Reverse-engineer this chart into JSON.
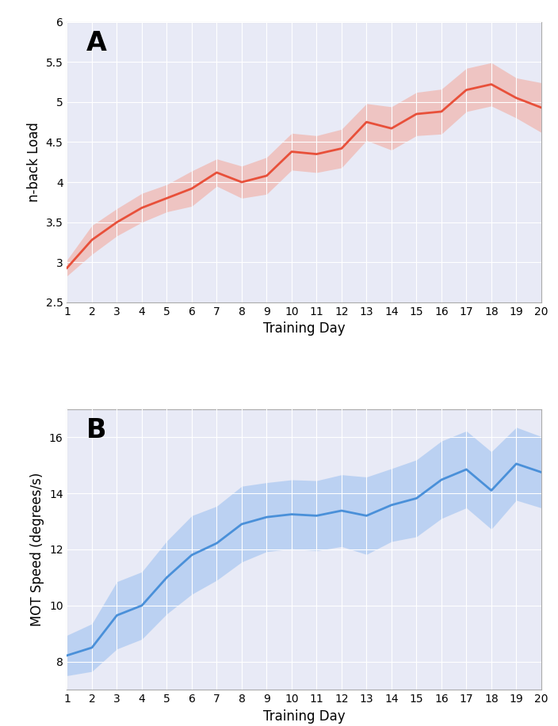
{
  "days": [
    1,
    2,
    3,
    4,
    5,
    6,
    7,
    8,
    9,
    10,
    11,
    12,
    13,
    14,
    15,
    16,
    17,
    18,
    19,
    20
  ],
  "panel_A": {
    "label": "A",
    "ylabel": "n-back Load",
    "xlabel": "Training Day",
    "ylim": [
      2.5,
      6.0
    ],
    "yticks": [
      2.5,
      3.0,
      3.5,
      4.0,
      4.5,
      5.0,
      5.5,
      6.0
    ],
    "mean": [
      2.93,
      3.28,
      3.5,
      3.68,
      3.8,
      3.92,
      4.12,
      4.0,
      4.08,
      4.38,
      4.35,
      4.42,
      4.75,
      4.67,
      4.85,
      4.88,
      5.15,
      5.22,
      5.05,
      4.93
    ],
    "ci_low": [
      2.83,
      3.1,
      3.33,
      3.5,
      3.63,
      3.7,
      3.95,
      3.8,
      3.85,
      4.15,
      4.12,
      4.18,
      4.52,
      4.4,
      4.58,
      4.6,
      4.88,
      4.95,
      4.8,
      4.62
    ],
    "ci_high": [
      3.03,
      3.46,
      3.67,
      3.86,
      3.97,
      4.14,
      4.29,
      4.2,
      4.31,
      4.61,
      4.58,
      4.66,
      4.98,
      4.94,
      5.12,
      5.16,
      5.42,
      5.49,
      5.3,
      5.24
    ],
    "line_color": "#e8503a",
    "fill_color": "#f4a090",
    "fill_alpha": 0.5,
    "bg_color": "#e8eaf6"
  },
  "panel_B": {
    "label": "B",
    "ylabel": "MOT Speed (degrees/s)",
    "xlabel": "Training Day",
    "ylim": [
      7.0,
      17.0
    ],
    "yticks": [
      8,
      10,
      12,
      14,
      16
    ],
    "mean": [
      8.22,
      8.5,
      9.65,
      10.0,
      11.0,
      11.8,
      12.22,
      12.9,
      13.15,
      13.25,
      13.2,
      13.38,
      13.2,
      13.58,
      13.82,
      14.48,
      14.85,
      14.1,
      15.05,
      14.75
    ],
    "ci_low": [
      7.5,
      7.65,
      8.45,
      8.8,
      9.7,
      10.4,
      10.9,
      11.55,
      11.92,
      12.02,
      11.95,
      12.1,
      11.82,
      12.28,
      12.45,
      13.1,
      13.48,
      12.72,
      13.75,
      13.48
    ],
    "ci_high": [
      8.94,
      9.35,
      10.85,
      11.2,
      12.3,
      13.2,
      13.54,
      14.25,
      14.38,
      14.48,
      14.45,
      14.66,
      14.58,
      14.88,
      15.19,
      15.86,
      16.22,
      15.48,
      16.35,
      16.02
    ],
    "line_color": "#4a90d9",
    "fill_color": "#90baef",
    "fill_alpha": 0.5,
    "bg_color": "#e8eaf6"
  },
  "grid_color": "#ffffff",
  "grid_alpha": 1.0,
  "grid_linewidth": 0.8,
  "fig_bg_color": "#ffffff"
}
